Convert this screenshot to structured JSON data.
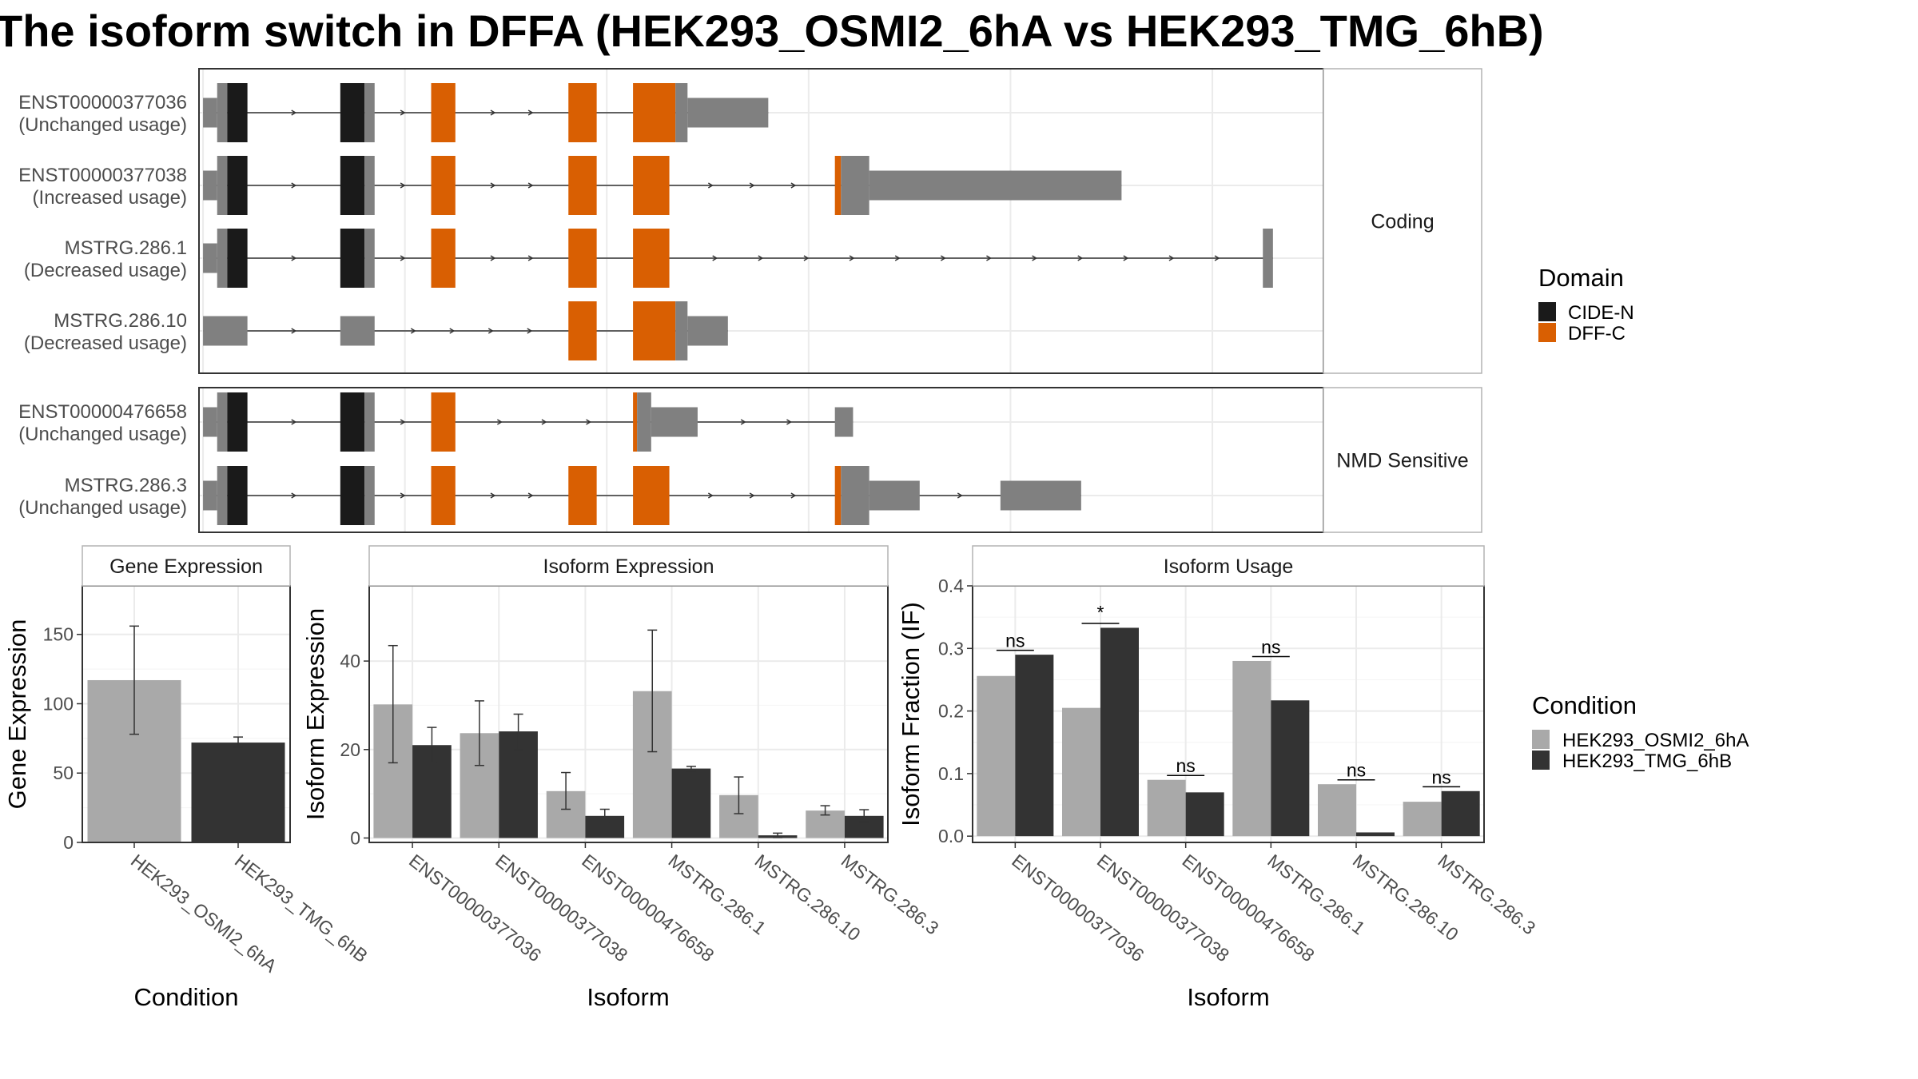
{
  "title": "The isoform switch in DFFA (HEK293_OSMI2_6hA vs HEK293_TMG_6hB)",
  "colors": {
    "exon": "#808080",
    "cide": "#1a1a1a",
    "dff": "#d95f02",
    "cond1": "#a9a9a9",
    "cond2": "#333333",
    "grid": "#ebebeb",
    "panel_border": "#333333",
    "strip_fill": "#ffffff",
    "strip_border": "#b3b3b3"
  },
  "legend_domain": {
    "title": "Domain",
    "items": [
      {
        "name": "CIDE-N",
        "color": "#1a1a1a"
      },
      {
        "name": "DFF-C",
        "color": "#d95f02"
      }
    ]
  },
  "legend_condition": {
    "title": "Condition",
    "items": [
      {
        "name": "HEK293_OSMI2_6hA",
        "color": "#a9a9a9"
      },
      {
        "name": "HEK293_TMG_6hB",
        "color": "#333333"
      }
    ]
  },
  "chart_data": [
    {
      "type": "gene-structure",
      "groups": [
        {
          "label": "Coding",
          "isoforms": [
            {
              "name": "ENST00000377036",
              "usage": "(Unchanged usage)",
              "features": [
                {
                  "kind": "utr",
                  "x0": 0,
                  "x1": 0.7
                },
                {
                  "kind": "cds",
                  "x0": 0.7,
                  "x1": 1.2
                },
                {
                  "kind": "cide",
                  "x0": 1.2,
                  "x1": 2.2
                },
                {
                  "kind": "cide",
                  "x0": 6.8,
                  "x1": 8.0
                },
                {
                  "kind": "cds",
                  "x0": 8.0,
                  "x1": 8.5
                },
                {
                  "kind": "dff",
                  "x0": 11.3,
                  "x1": 12.5
                },
                {
                  "kind": "dff",
                  "x0": 18.1,
                  "x1": 19.5
                },
                {
                  "kind": "dff",
                  "x0": 21.3,
                  "x1": 23.4
                },
                {
                  "kind": "cds",
                  "x0": 23.4,
                  "x1": 24.0
                },
                {
                  "kind": "utr",
                  "x0": 24.0,
                  "x1": 28.0
                }
              ]
            },
            {
              "name": "ENST00000377038",
              "usage": "(Increased usage)",
              "features": [
                {
                  "kind": "utr",
                  "x0": 0,
                  "x1": 0.7
                },
                {
                  "kind": "cds",
                  "x0": 0.7,
                  "x1": 1.2
                },
                {
                  "kind": "cide",
                  "x0": 1.2,
                  "x1": 2.2
                },
                {
                  "kind": "cide",
                  "x0": 6.8,
                  "x1": 8.0
                },
                {
                  "kind": "cds",
                  "x0": 8.0,
                  "x1": 8.5
                },
                {
                  "kind": "dff",
                  "x0": 11.3,
                  "x1": 12.5
                },
                {
                  "kind": "dff",
                  "x0": 18.1,
                  "x1": 19.5
                },
                {
                  "kind": "dff",
                  "x0": 21.3,
                  "x1": 23.1
                },
                {
                  "kind": "dff",
                  "x0": 31.3,
                  "x1": 31.6
                },
                {
                  "kind": "cds",
                  "x0": 31.6,
                  "x1": 33.0
                },
                {
                  "kind": "utr",
                  "x0": 33.0,
                  "x1": 45.5
                }
              ]
            },
            {
              "name": "MSTRG.286.1",
              "usage": "(Decreased usage)",
              "features": [
                {
                  "kind": "utr",
                  "x0": 0,
                  "x1": 0.7
                },
                {
                  "kind": "cds",
                  "x0": 0.7,
                  "x1": 1.2
                },
                {
                  "kind": "cide",
                  "x0": 1.2,
                  "x1": 2.2
                },
                {
                  "kind": "cide",
                  "x0": 6.8,
                  "x1": 8.0
                },
                {
                  "kind": "cds",
                  "x0": 8.0,
                  "x1": 8.5
                },
                {
                  "kind": "dff",
                  "x0": 11.3,
                  "x1": 12.5
                },
                {
                  "kind": "dff",
                  "x0": 18.1,
                  "x1": 19.5
                },
                {
                  "kind": "dff",
                  "x0": 21.3,
                  "x1": 23.1
                },
                {
                  "kind": "cds",
                  "x0": 52.5,
                  "x1": 53.0
                }
              ]
            },
            {
              "name": "MSTRG.286.10",
              "usage": "(Decreased usage)",
              "features": [
                {
                  "kind": "utr",
                  "x0": 0,
                  "x1": 2.2
                },
                {
                  "kind": "utr",
                  "x0": 6.8,
                  "x1": 8.5
                },
                {
                  "kind": "dff",
                  "x0": 18.1,
                  "x1": 19.5
                },
                {
                  "kind": "dff",
                  "x0": 21.3,
                  "x1": 23.4
                },
                {
                  "kind": "cds",
                  "x0": 23.4,
                  "x1": 24.0
                },
                {
                  "kind": "utr",
                  "x0": 24.0,
                  "x1": 26.0
                }
              ]
            }
          ]
        },
        {
          "label": "NMD Sensitive",
          "isoforms": [
            {
              "name": "ENST00000476658",
              "usage": "(Unchanged usage)",
              "features": [
                {
                  "kind": "utr",
                  "x0": 0,
                  "x1": 0.7
                },
                {
                  "kind": "cds",
                  "x0": 0.7,
                  "x1": 1.2
                },
                {
                  "kind": "cide",
                  "x0": 1.2,
                  "x1": 2.2
                },
                {
                  "kind": "cide",
                  "x0": 6.8,
                  "x1": 8.0
                },
                {
                  "kind": "cds",
                  "x0": 8.0,
                  "x1": 8.5
                },
                {
                  "kind": "dff",
                  "x0": 11.3,
                  "x1": 12.5
                },
                {
                  "kind": "dff",
                  "x0": 21.3,
                  "x1": 21.5
                },
                {
                  "kind": "cds",
                  "x0": 21.5,
                  "x1": 22.2
                },
                {
                  "kind": "utr",
                  "x0": 22.2,
                  "x1": 24.5
                },
                {
                  "kind": "utr",
                  "x0": 31.3,
                  "x1": 32.2
                }
              ]
            },
            {
              "name": "MSTRG.286.3",
              "usage": "(Unchanged usage)",
              "features": [
                {
                  "kind": "utr",
                  "x0": 0,
                  "x1": 0.7
                },
                {
                  "kind": "cds",
                  "x0": 0.7,
                  "x1": 1.2
                },
                {
                  "kind": "cide",
                  "x0": 1.2,
                  "x1": 2.2
                },
                {
                  "kind": "cide",
                  "x0": 6.8,
                  "x1": 8.0
                },
                {
                  "kind": "cds",
                  "x0": 8.0,
                  "x1": 8.5
                },
                {
                  "kind": "dff",
                  "x0": 11.3,
                  "x1": 12.5
                },
                {
                  "kind": "dff",
                  "x0": 18.1,
                  "x1": 19.5
                },
                {
                  "kind": "dff",
                  "x0": 21.3,
                  "x1": 23.1
                },
                {
                  "kind": "dff",
                  "x0": 31.3,
                  "x1": 31.6
                },
                {
                  "kind": "cds",
                  "x0": 31.6,
                  "x1": 33.0
                },
                {
                  "kind": "utr",
                  "x0": 33.0,
                  "x1": 35.5
                },
                {
                  "kind": "utr",
                  "x0": 39.5,
                  "x1": 43.5
                }
              ]
            }
          ]
        }
      ],
      "xlim": [
        -0.2,
        55.5
      ]
    },
    {
      "type": "bar",
      "panel": "Gene Expression",
      "xlabel": "Condition",
      "ylabel": "Gene Expression",
      "categories": [
        "HEK293_OSMI2_6hA",
        "HEK293_TMG_6hB"
      ],
      "values": [
        117,
        72
      ],
      "error_low": [
        78,
        69
      ],
      "error_high": [
        156,
        76
      ],
      "ylim": [
        0,
        185
      ],
      "yticks": [
        0,
        50,
        100,
        150
      ]
    },
    {
      "type": "bar",
      "panel": "Isoform Expression",
      "xlabel": "Isoform",
      "ylabel": "Isoform Expression",
      "categories": [
        "ENST00000377036",
        "ENST00000377038",
        "ENST00000476658",
        "MSTRG.286.1",
        "MSTRG.286.10",
        "MSTRG.286.3"
      ],
      "series": [
        {
          "name": "HEK293_OSMI2_6hA",
          "values": [
            30.2,
            23.7,
            10.6,
            33.2,
            9.7,
            6.2
          ],
          "error_low": [
            17.0,
            16.4,
            6.5,
            19.5,
            5.5,
            5.2
          ],
          "error_high": [
            43.5,
            31.0,
            14.8,
            47.0,
            13.8,
            7.3
          ]
        },
        {
          "name": "HEK293_TMG_6hB",
          "values": [
            21.0,
            24.1,
            5.0,
            15.7,
            0.6,
            5.0
          ],
          "error_low": [
            17.0,
            20.0,
            3.5,
            15.2,
            0.1,
            3.6
          ],
          "error_high": [
            25.0,
            28.0,
            6.5,
            16.2,
            1.1,
            6.4
          ]
        }
      ],
      "ylim": [
        -1,
        57
      ],
      "yticks": [
        0,
        20,
        40
      ]
    },
    {
      "type": "bar",
      "panel": "Isoform Usage",
      "xlabel": "Isoform",
      "ylabel": "Isoform Fraction (IF)",
      "categories": [
        "ENST00000377036",
        "ENST00000377038",
        "ENST00000476658",
        "MSTRG.286.1",
        "MSTRG.286.10",
        "MSTRG.286.3"
      ],
      "series": [
        {
          "name": "HEK293_OSMI2_6hA",
          "values": [
            0.256,
            0.205,
            0.09,
            0.28,
            0.083,
            0.055
          ]
        },
        {
          "name": "HEK293_TMG_6hB",
          "values": [
            0.29,
            0.333,
            0.07,
            0.217,
            0.006,
            0.072
          ]
        }
      ],
      "significance": [
        "ns",
        "*",
        "ns",
        "ns",
        "ns",
        "ns"
      ],
      "ylim": [
        -0.01,
        0.4
      ],
      "yticks": [
        0.0,
        0.1,
        0.2,
        0.3,
        0.4
      ],
      "ytick_labels": [
        "0.0",
        "0.1",
        "0.2",
        "0.3",
        "0.4"
      ]
    }
  ]
}
